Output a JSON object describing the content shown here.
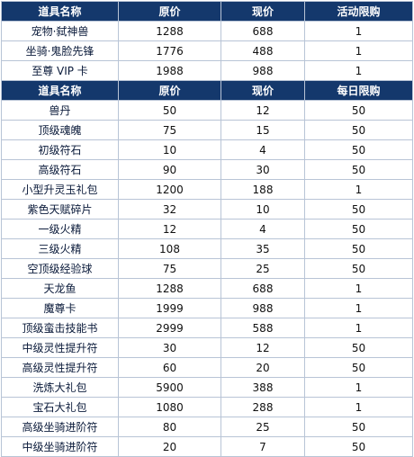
{
  "section1": {
    "headers": [
      "道具名称",
      "原价",
      "现价",
      "活动限购"
    ],
    "rows": [
      [
        "宠物·弑神兽",
        "1288",
        "688",
        "1"
      ],
      [
        "坐骑·鬼脸先锋",
        "1776",
        "488",
        "1"
      ],
      [
        "至尊 VIP 卡",
        "1988",
        "988",
        "1"
      ]
    ]
  },
  "section2": {
    "headers": [
      "道具名称",
      "原价",
      "现价",
      "每日限购"
    ],
    "rows": [
      [
        "兽丹",
        "50",
        "12",
        "50"
      ],
      [
        "顶级魂魄",
        "75",
        "15",
        "50"
      ],
      [
        "初级符石",
        "10",
        "4",
        "50"
      ],
      [
        "高级符石",
        "90",
        "30",
        "50"
      ],
      [
        "小型升灵玉礼包",
        "1200",
        "188",
        "1"
      ],
      [
        "紫色天赋碎片",
        "32",
        "10",
        "50"
      ],
      [
        "一级火精",
        "12",
        "4",
        "50"
      ],
      [
        "三级火精",
        "108",
        "35",
        "50"
      ],
      [
        "空顶级经验球",
        "75",
        "25",
        "50"
      ],
      [
        "天龙鱼",
        "1288",
        "688",
        "1"
      ],
      [
        "魔尊卡",
        "1999",
        "988",
        "1"
      ],
      [
        "顶级蛮击技能书",
        "2999",
        "588",
        "1"
      ],
      [
        "中级灵性提升符",
        "30",
        "12",
        "50"
      ],
      [
        "高级灵性提升符",
        "60",
        "20",
        "50"
      ],
      [
        "洗炼大礼包",
        "5900",
        "388",
        "1"
      ],
      [
        "宝石大礼包",
        "1080",
        "288",
        "1"
      ],
      [
        "高级坐骑进阶符",
        "80",
        "25",
        "50"
      ],
      [
        "中级坐骑进阶符",
        "20",
        "7",
        "50"
      ]
    ]
  }
}
